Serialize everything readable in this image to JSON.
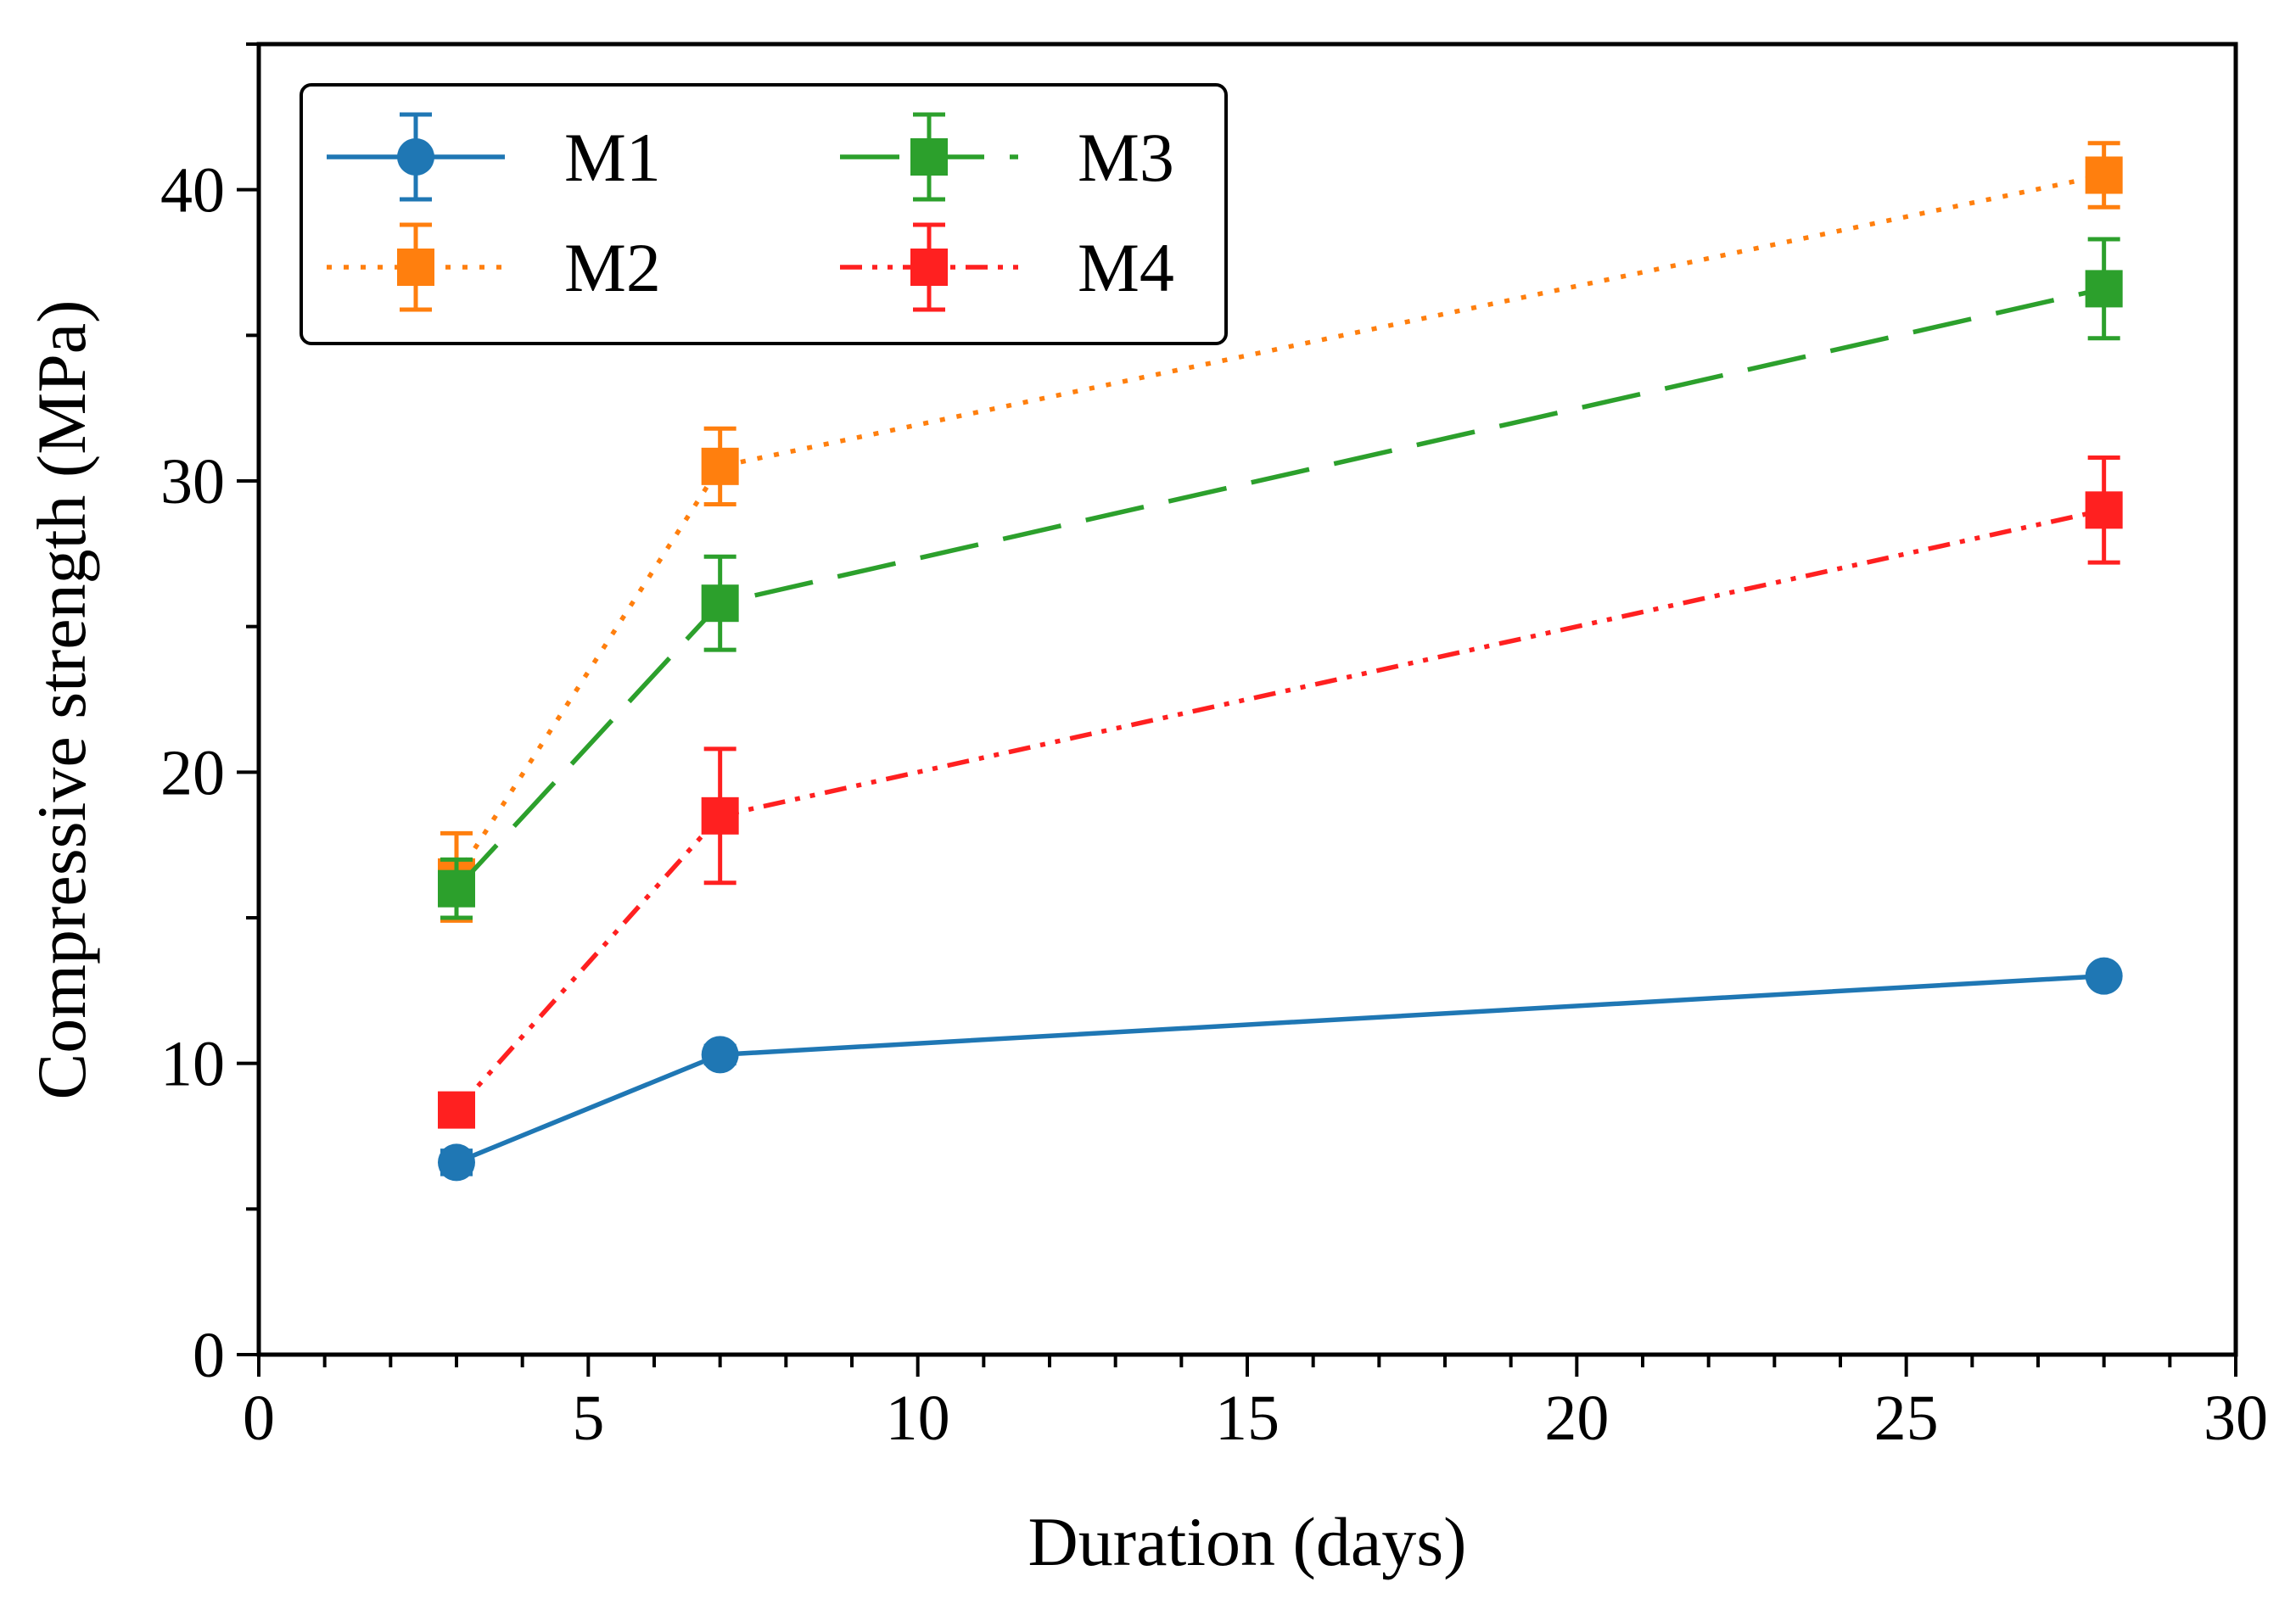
{
  "chart_data": {
    "type": "line",
    "title": "",
    "xlabel": "Duration (days)",
    "ylabel": "Compressive strength (MPa)",
    "xlim": [
      0,
      30
    ],
    "ylim": [
      0,
      45
    ],
    "xticks": [
      0,
      5,
      10,
      15,
      20,
      25,
      30
    ],
    "xtick_labels": [
      "0",
      "5",
      "10",
      "15",
      "20",
      "25",
      "30"
    ],
    "yticks": [
      0,
      10,
      20,
      30,
      40
    ],
    "ytick_labels": [
      "0",
      "10",
      "20",
      "30",
      "40"
    ],
    "grid": false,
    "legend": {
      "position": "top-left",
      "columns": 2
    },
    "x": [
      3,
      7,
      28
    ],
    "series": [
      {
        "name": "M1",
        "values": [
          6.6,
          10.3,
          13.0
        ],
        "errors": [
          0.4,
          0.3,
          0.2
        ],
        "color": "#1f77b4",
        "marker": "circle",
        "dash": "solid"
      },
      {
        "name": "M2",
        "values": [
          16.4,
          30.5,
          40.5
        ],
        "errors": [
          1.5,
          1.3,
          1.1
        ],
        "color": "#ff7f0e",
        "marker": "square",
        "dash": "dotted"
      },
      {
        "name": "M3",
        "values": [
          16.0,
          25.8,
          36.6
        ],
        "errors": [
          1.0,
          1.6,
          1.7
        ],
        "color": "#2ca02c",
        "marker": "square",
        "dash": "dashed"
      },
      {
        "name": "M4",
        "values": [
          8.4,
          18.5,
          29.0
        ],
        "errors": [
          0.3,
          2.3,
          1.8
        ],
        "color": "#ff2020",
        "marker": "square",
        "dash": "dashdotdot"
      }
    ]
  }
}
